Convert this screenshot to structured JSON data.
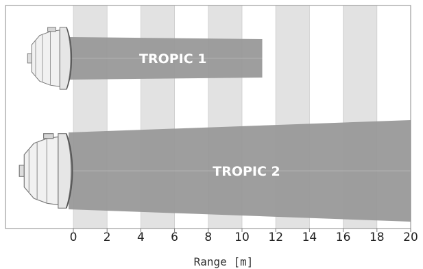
{
  "chart_data": {
    "type": "area",
    "title": "",
    "xlabel": "Range [m]",
    "ylabel": "",
    "xlim": [
      0,
      20
    ],
    "xticks": [
      0,
      2,
      4,
      6,
      8,
      10,
      12,
      14,
      16,
      18,
      20
    ],
    "xtick_labels": [
      "0",
      "2",
      "4",
      "6",
      "8",
      "10",
      "12",
      "14",
      "16",
      "18",
      "20"
    ],
    "grid": "alternating vertical bands",
    "series": [
      {
        "label": "TROPIC 1",
        "range_start": 0,
        "range_end": 11.2,
        "beam_color": "#999999",
        "icon": "tropic-1-heater-icon"
      },
      {
        "label": "TROPIC 2",
        "range_start": 0,
        "range_end": 20,
        "beam_color": "#999999",
        "icon": "tropic-2-heater-icon"
      }
    ],
    "colors": {
      "band": "#e2e2e2",
      "frame": "#888888",
      "centerline": "#b8b8b8"
    }
  }
}
